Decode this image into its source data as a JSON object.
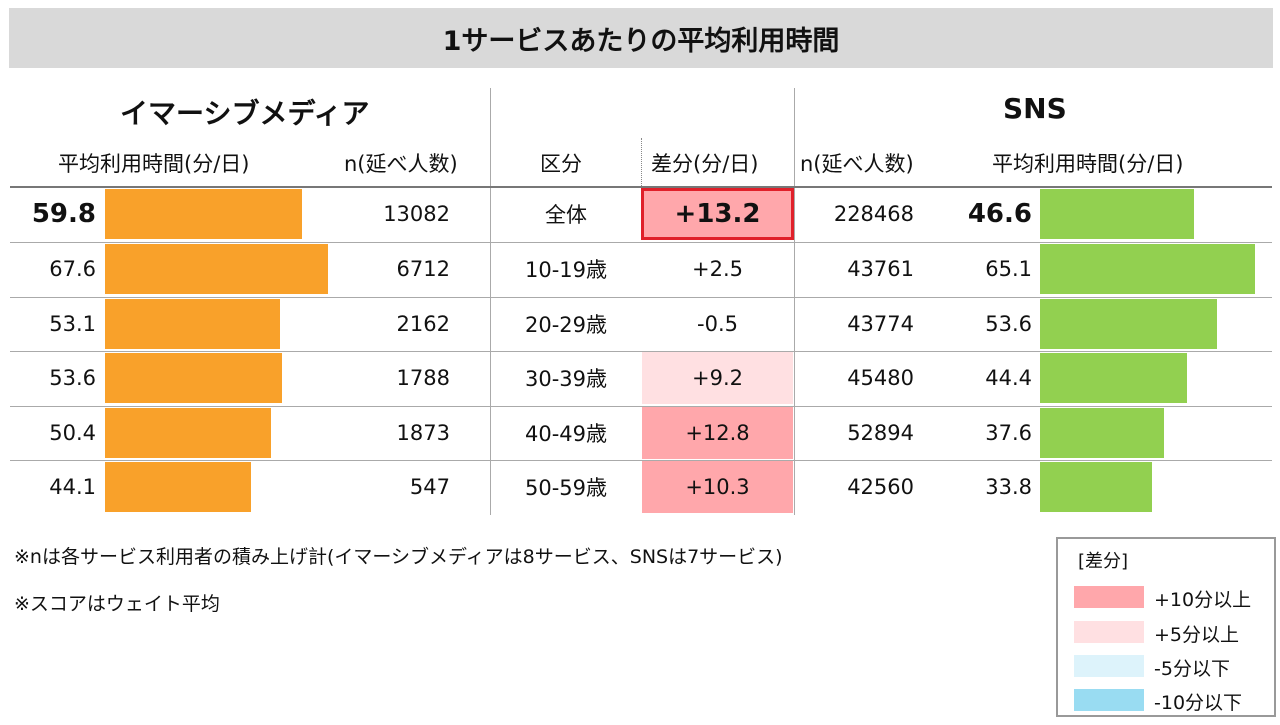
{
  "title": "1サービスあたりの平均利用時間",
  "left_section": {
    "title": "イマーシブメディア",
    "col_time": "平均利用時間(分/日)",
    "col_n": "n(延べ人数)"
  },
  "middle": {
    "col_segment": "区分",
    "col_diff": "差分(分/日)"
  },
  "right_section": {
    "title": "SNS",
    "col_n": "n(延べ人数)",
    "col_time": "平均利用時間(分/日)"
  },
  "chart_data": {
    "type": "table",
    "segments": [
      "全体",
      "10-19歳",
      "20-29歳",
      "30-39歳",
      "40-49歳",
      "50-59歳"
    ],
    "immersive_time": [
      59.8,
      67.6,
      53.1,
      53.6,
      50.4,
      44.1
    ],
    "immersive_n": [
      "13082",
      "6712",
      "2162",
      "1788",
      "1873",
      "547"
    ],
    "diff_labels": [
      "+13.2",
      "+2.5",
      "-0.5",
      "+9.2",
      "+12.8",
      "+10.3"
    ],
    "diff_values": [
      13.2,
      2.5,
      -0.5,
      9.2,
      12.8,
      10.3
    ],
    "sns_n": [
      "228468",
      "43761",
      "43774",
      "45480",
      "52894",
      "42560"
    ],
    "sns_time": [
      46.6,
      65.1,
      53.6,
      44.4,
      37.6,
      33.8
    ],
    "colors": {
      "immersive_bar": "#f9a12a",
      "sns_bar": "#92d050",
      "plus10": "#ffa7ab",
      "plus5": "#ffe0e2",
      "minus5": "#ddf3fb",
      "minus10": "#99dcf2",
      "highlight_border": "#e0202a"
    }
  },
  "notes": [
    "※nは各サービス利用者の積み上げ計(イマーシブメディアは8サービス、SNSは7サービス)",
    "※スコアはウェイト平均"
  ],
  "legend": {
    "title": "[差分]",
    "items": [
      "+10分以上",
      "+5分以上",
      "-5分以下",
      "-10分以下"
    ]
  }
}
